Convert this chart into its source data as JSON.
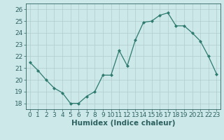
{
  "x": [
    0,
    1,
    2,
    3,
    4,
    5,
    6,
    7,
    8,
    9,
    10,
    11,
    12,
    13,
    14,
    15,
    16,
    17,
    18,
    19,
    20,
    21,
    22,
    23
  ],
  "y": [
    21.5,
    20.8,
    20.0,
    19.3,
    18.9,
    18.0,
    18.0,
    18.6,
    19.0,
    20.4,
    20.4,
    22.5,
    21.2,
    23.4,
    24.9,
    25.0,
    25.5,
    25.7,
    24.6,
    24.6,
    24.0,
    23.3,
    22.0,
    20.5
  ],
  "xlabel": "Humidex (Indice chaleur)",
  "xlim": [
    -0.5,
    23.5
  ],
  "ylim": [
    17.5,
    26.5
  ],
  "yticks": [
    18,
    19,
    20,
    21,
    22,
    23,
    24,
    25,
    26
  ],
  "xticks": [
    0,
    1,
    2,
    3,
    4,
    5,
    6,
    7,
    8,
    9,
    10,
    11,
    12,
    13,
    14,
    15,
    16,
    17,
    18,
    19,
    20,
    21,
    22,
    23
  ],
  "line_color": "#2d7a6e",
  "marker_color": "#2d7a6e",
  "bg_color": "#cce8e8",
  "grid_color": "#b0cccc",
  "tick_label_color": "#2d6060",
  "axis_label_color": "#2d6060",
  "font_size_ticks": 6.5,
  "font_size_xlabel": 7.5
}
